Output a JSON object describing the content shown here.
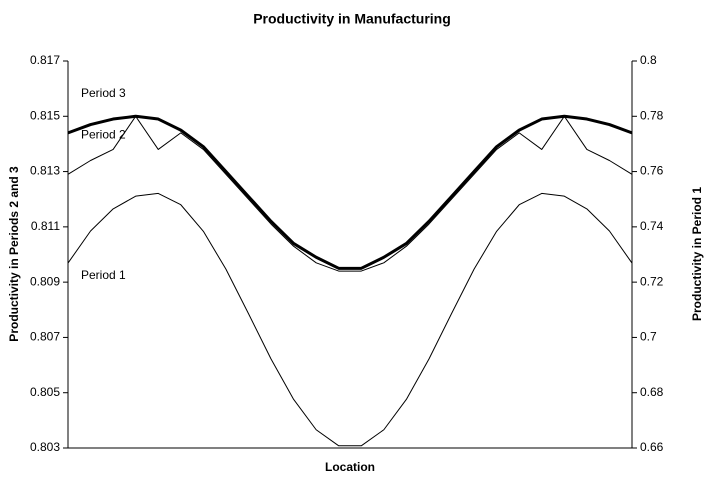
{
  "chart_data": {
    "type": "line",
    "title": "Productivity in Manufacturing",
    "xlabel": "Location",
    "ylabel": "Productivity in Periods 2 and 3",
    "y2label": "Productivity in Period 1",
    "x": [
      0,
      0.04,
      0.08,
      0.12,
      0.16,
      0.2,
      0.24,
      0.28,
      0.32,
      0.36,
      0.4,
      0.44,
      0.48,
      0.52,
      0.56,
      0.6,
      0.64,
      0.68,
      0.72,
      0.76,
      0.8,
      0.84,
      0.88,
      0.92,
      0.96,
      1
    ],
    "xlim": [
      0,
      1
    ],
    "ylim": [
      0.803,
      0.817
    ],
    "yticks": [
      0.803,
      0.805,
      0.807,
      0.809,
      0.811,
      0.813,
      0.815,
      0.817
    ],
    "y2lim": [
      0.66,
      0.8
    ],
    "y2ticks": [
      0.66,
      0.68,
      0.7,
      0.72,
      0.74,
      0.76,
      0.78,
      0.8
    ],
    "grid": false,
    "series": [
      {
        "name": "Period 3",
        "color": "#000000",
        "width": 3,
        "values": [
          0.8144,
          0.8147,
          0.8149,
          0.815,
          0.8149,
          0.8145,
          0.8139,
          0.813,
          0.8121,
          0.8112,
          0.8104,
          0.8099,
          0.8095,
          0.8095,
          0.8099,
          0.8104,
          0.8112,
          0.8121,
          0.813,
          0.8139,
          0.8145,
          0.8149,
          0.815,
          0.8149,
          0.8147,
          0.8144
        ]
      },
      {
        "name": "Period 2",
        "color": "#000000",
        "width": 1,
        "values": [
          0.8129,
          0.8134,
          0.8138,
          0.815,
          0.8138,
          0.8144,
          0.8138,
          0.8129,
          0.812,
          0.8111,
          0.8103,
          0.8097,
          0.8094,
          0.8094,
          0.8097,
          0.8103,
          0.8111,
          0.812,
          0.8129,
          0.8138,
          0.8144,
          0.8138,
          0.815,
          0.8138,
          0.8134,
          0.8129
        ]
      },
      {
        "name": "Period 1",
        "color": "#000000",
        "width": 1,
        "axis": "y2",
        "values": [
          0.7269,
          0.7385,
          0.7465,
          0.7511,
          0.7521,
          0.748,
          0.7384,
          0.7247,
          0.7086,
          0.6922,
          0.6776,
          0.6666,
          0.6608,
          0.6608,
          0.6666,
          0.6776,
          0.6922,
          0.7086,
          0.7247,
          0.7384,
          0.748,
          0.7521,
          0.7511,
          0.7465,
          0.7385,
          0.7269
        ]
      }
    ]
  }
}
